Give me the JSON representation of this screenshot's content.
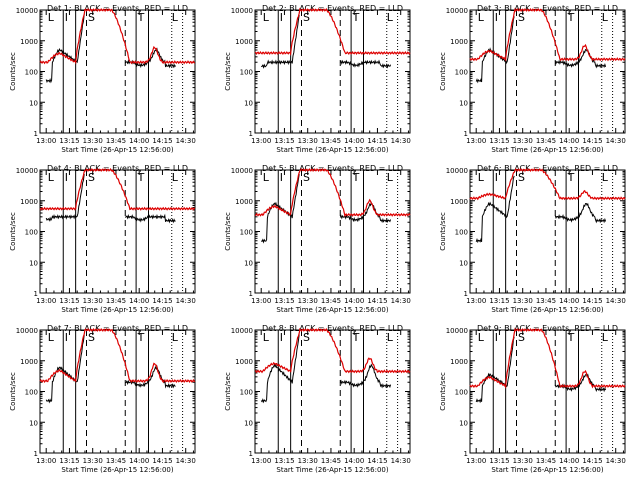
{
  "chart_data": {
    "type": "line",
    "y_scale": "log",
    "ylim": [
      1,
      10000
    ],
    "x_ticks": [
      "13:00",
      "13:15",
      "13:30",
      "13:45",
      "14:00",
      "14:15",
      "14:30"
    ],
    "y_ticks": [
      "1",
      "10",
      "100",
      "1000",
      "10000"
    ],
    "ylabel": "Counts/sec",
    "xlabel": "Start Time (26-Apr-15 12:56:00)",
    "marker_labels": [
      "L",
      "I",
      "S",
      "T",
      "L"
    ],
    "series_colors": {
      "events": "#000000",
      "lld": "#dd0000"
    },
    "panels": [
      {
        "title": "Det 1: BLACK = Events, RED = LLD",
        "events_low": 50,
        "events_high": 200,
        "events_peak": 500,
        "lld_base": 200,
        "lld_bump": 600,
        "lld_max": 10000
      },
      {
        "title": "Det 2: BLACK = Events, RED = LLD",
        "events_low": 150,
        "events_high": 200,
        "events_peak": 200,
        "lld_base": 400,
        "lld_bump": 400,
        "lld_max": 10000
      },
      {
        "title": "Det 3: BLACK = Events, RED = LLD",
        "events_low": 50,
        "events_high": 200,
        "events_peak": 500,
        "lld_base": 250,
        "lld_bump": 700,
        "lld_max": 10000
      },
      {
        "title": "Det 4: BLACK = Events, RED = LLD",
        "events_low": 250,
        "events_high": 300,
        "events_peak": 300,
        "lld_base": 550,
        "lld_bump": 550,
        "lld_max": 10000
      },
      {
        "title": "Det 5: BLACK = Events, RED = LLD",
        "events_low": 50,
        "events_high": 300,
        "events_peak": 800,
        "lld_base": 350,
        "lld_bump": 1000,
        "lld_max": 10000
      },
      {
        "title": "Det 6: BLACK = Events, RED = LLD",
        "events_low": 50,
        "events_high": 300,
        "events_peak": 800,
        "lld_base": 1200,
        "lld_bump": 2000,
        "lld_max": 10000
      },
      {
        "title": "Det 7: BLACK = Events, RED = LLD",
        "events_low": 50,
        "events_high": 200,
        "events_peak": 600,
        "lld_base": 220,
        "lld_bump": 800,
        "lld_max": 10000
      },
      {
        "title": "Det 8: BLACK = Events, RED = LLD",
        "events_low": 50,
        "events_high": 200,
        "events_peak": 700,
        "lld_base": 450,
        "lld_bump": 1200,
        "lld_max": 10000
      },
      {
        "title": "Det 9: BLACK = Events, RED = LLD",
        "events_low": 50,
        "events_high": 150,
        "events_peak": 350,
        "lld_base": 150,
        "lld_bump": 450,
        "lld_max": 10000
      }
    ]
  }
}
